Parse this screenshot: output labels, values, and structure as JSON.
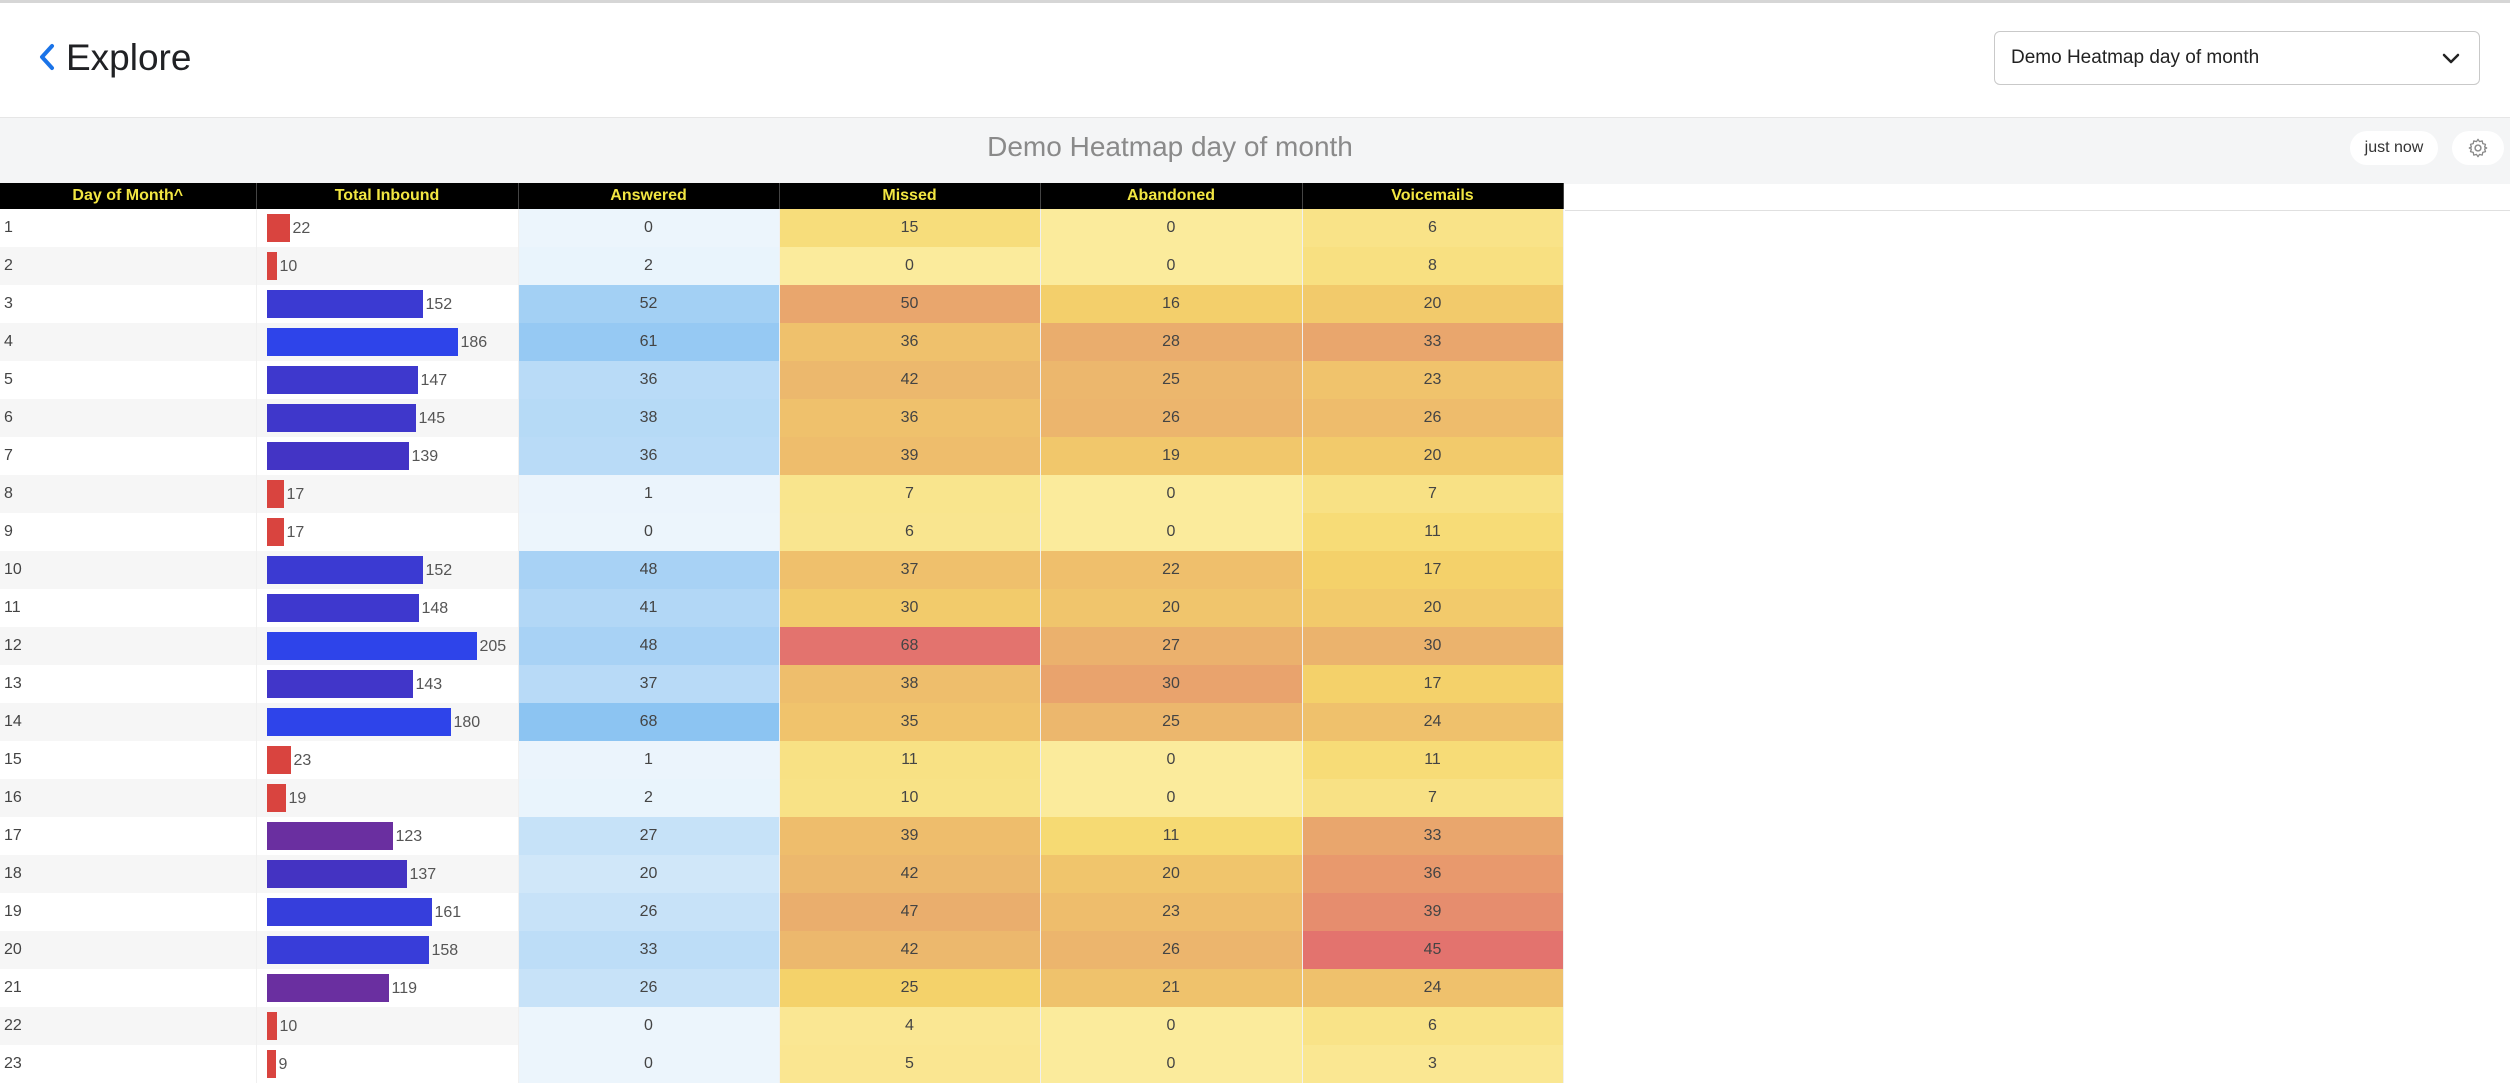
{
  "header": {
    "title": "Explore",
    "dashboard_select": "Demo Heatmap day of month"
  },
  "viz": {
    "title": "Demo Heatmap day of month",
    "refresh_label": "just now"
  },
  "table": {
    "columns": [
      "Day of Month",
      "Total Inbound",
      "Answered",
      "Missed",
      "Abandoned",
      "Voicemails"
    ],
    "sort_column": "Day of Month",
    "sort_direction": "ascending",
    "rows": [
      {
        "day": "1",
        "total": "22",
        "answered": "0",
        "missed": "15",
        "abandoned": "0",
        "voicemails": "6"
      },
      {
        "day": "2",
        "total": "10",
        "answered": "2",
        "missed": "0",
        "abandoned": "0",
        "voicemails": "8"
      },
      {
        "day": "3",
        "total": "152",
        "answered": "52",
        "missed": "50",
        "abandoned": "16",
        "voicemails": "20"
      },
      {
        "day": "4",
        "total": "186",
        "answered": "61",
        "missed": "36",
        "abandoned": "28",
        "voicemails": "33"
      },
      {
        "day": "5",
        "total": "147",
        "answered": "36",
        "missed": "42",
        "abandoned": "25",
        "voicemails": "23"
      },
      {
        "day": "6",
        "total": "145",
        "answered": "38",
        "missed": "36",
        "abandoned": "26",
        "voicemails": "26"
      },
      {
        "day": "7",
        "total": "139",
        "answered": "36",
        "missed": "39",
        "abandoned": "19",
        "voicemails": "20"
      },
      {
        "day": "8",
        "total": "17",
        "answered": "1",
        "missed": "7",
        "abandoned": "0",
        "voicemails": "7"
      },
      {
        "day": "9",
        "total": "17",
        "answered": "0",
        "missed": "6",
        "abandoned": "0",
        "voicemails": "11"
      },
      {
        "day": "10",
        "total": "152",
        "answered": "48",
        "missed": "37",
        "abandoned": "22",
        "voicemails": "17"
      },
      {
        "day": "11",
        "total": "148",
        "answered": "41",
        "missed": "30",
        "abandoned": "20",
        "voicemails": "20"
      },
      {
        "day": "12",
        "total": "205",
        "answered": "48",
        "missed": "68",
        "abandoned": "27",
        "voicemails": "30"
      },
      {
        "day": "13",
        "total": "143",
        "answered": "37",
        "missed": "38",
        "abandoned": "30",
        "voicemails": "17"
      },
      {
        "day": "14",
        "total": "180",
        "answered": "68",
        "missed": "35",
        "abandoned": "25",
        "voicemails": "24"
      },
      {
        "day": "15",
        "total": "23",
        "answered": "1",
        "missed": "11",
        "abandoned": "0",
        "voicemails": "11"
      },
      {
        "day": "16",
        "total": "19",
        "answered": "2",
        "missed": "10",
        "abandoned": "0",
        "voicemails": "7"
      },
      {
        "day": "17",
        "total": "123",
        "answered": "27",
        "missed": "39",
        "abandoned": "11",
        "voicemails": "33"
      },
      {
        "day": "18",
        "total": "137",
        "answered": "20",
        "missed": "42",
        "abandoned": "20",
        "voicemails": "36"
      },
      {
        "day": "19",
        "total": "161",
        "answered": "26",
        "missed": "47",
        "abandoned": "23",
        "voicemails": "39"
      },
      {
        "day": "20",
        "total": "158",
        "answered": "33",
        "missed": "42",
        "abandoned": "26",
        "voicemails": "45"
      },
      {
        "day": "21",
        "total": "119",
        "answered": "26",
        "missed": "25",
        "abandoned": "21",
        "voicemails": "24"
      },
      {
        "day": "22",
        "total": "10",
        "answered": "0",
        "missed": "4",
        "abandoned": "0",
        "voicemails": "6"
      },
      {
        "day": "23",
        "total": "9",
        "answered": "0",
        "missed": "5",
        "abandoned": "0",
        "voicemails": "3"
      }
    ]
  },
  "colors": {
    "header_bg": "#000000",
    "header_text": "#f2e642",
    "back_icon": "#1a73e8",
    "bar_low": "#d9443f",
    "bar_mid": "#6a2fa0",
    "bar_high": "#2e44ea",
    "answered_scale": [
      "#ecf5fc",
      "#8cc4f2"
    ],
    "heat_scale": [
      "#fbeb9c",
      "#f5d66a",
      "#ebb36d",
      "#e3736e"
    ]
  },
  "icons": {
    "back": "chevron-left-icon",
    "select": "chevron-down-icon",
    "settings": "gear-icon",
    "sort": "sort-ascending-icon"
  }
}
